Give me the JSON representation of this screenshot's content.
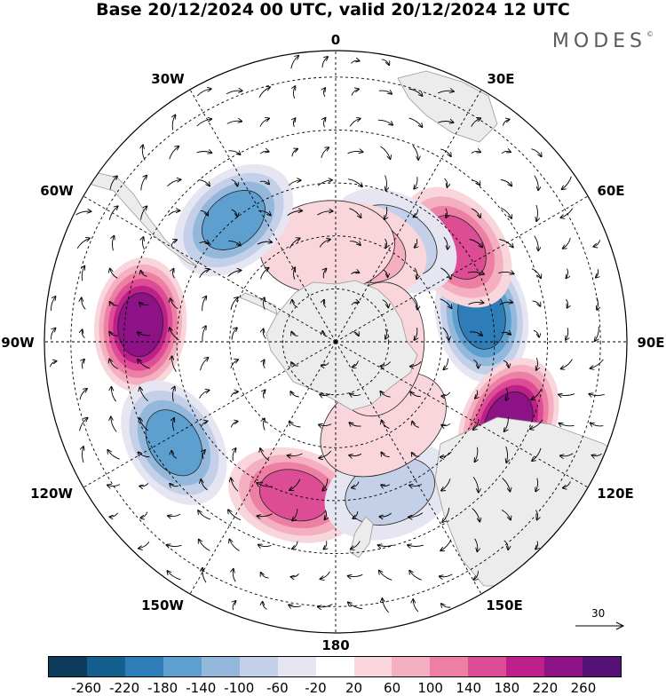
{
  "title": "Base 20/12/2024 00 UTC, valid 20/12/2024 12 UTC",
  "brand": {
    "name": "MODES",
    "mark": "©"
  },
  "longitude_labels": {
    "lon_0": "0",
    "lon_30e": "30E",
    "lon_60e": "60E",
    "lon_90e": "90E",
    "lon_120e": "120E",
    "lon_150e": "150E",
    "lon_180": "180",
    "lon_150w": "150W",
    "lon_120w": "120W",
    "lon_90w": "90W",
    "lon_60w": "60W",
    "lon_30w": "30W"
  },
  "reference_vector": {
    "value": "30"
  },
  "colorbar": {
    "ticks": [
      "-260",
      "-220",
      "-180",
      "-140",
      "-100",
      "-60",
      "-20",
      "20",
      "60",
      "100",
      "140",
      "180",
      "220",
      "260"
    ],
    "colors": [
      "#0c3b5c",
      "#145f8e",
      "#2e7db8",
      "#5d9fcf",
      "#93b8dc",
      "#c4cfe8",
      "#e6e6f3",
      "#ffffff",
      "#f9d6dc",
      "#f4b0c0",
      "#ec7fa3",
      "#dc4d95",
      "#be1f8a",
      "#8c1286",
      "#561276"
    ]
  },
  "map": {
    "projection": "south-polar-stereographic",
    "field": "geopotential height anomaly with wind vectors",
    "anomalies": [
      {
        "lon": 80,
        "colat": 28,
        "value": -200
      },
      {
        "lon": 115,
        "colat": 36,
        "value": 240
      },
      {
        "lon": 52,
        "colat": 29,
        "value": 160
      },
      {
        "lon": 30,
        "colat": 22,
        "value": -100
      },
      {
        "lon": 15,
        "colat": 18,
        "value": 100
      },
      {
        "lon": -5,
        "colat": 18,
        "value": 60
      },
      {
        "lon": -40,
        "colat": 30,
        "value": -160
      },
      {
        "lon": -85,
        "colat": 37,
        "value": 250
      },
      {
        "lon": -122,
        "colat": 36,
        "value": -180
      },
      {
        "lon": -165,
        "colat": 30,
        "value": 170
      },
      {
        "lon": 160,
        "colat": 30,
        "value": -100
      },
      {
        "lon": 150,
        "colat": 18,
        "value": 50
      },
      {
        "lon": 100,
        "colat": 8,
        "value": 40
      }
    ]
  }
}
